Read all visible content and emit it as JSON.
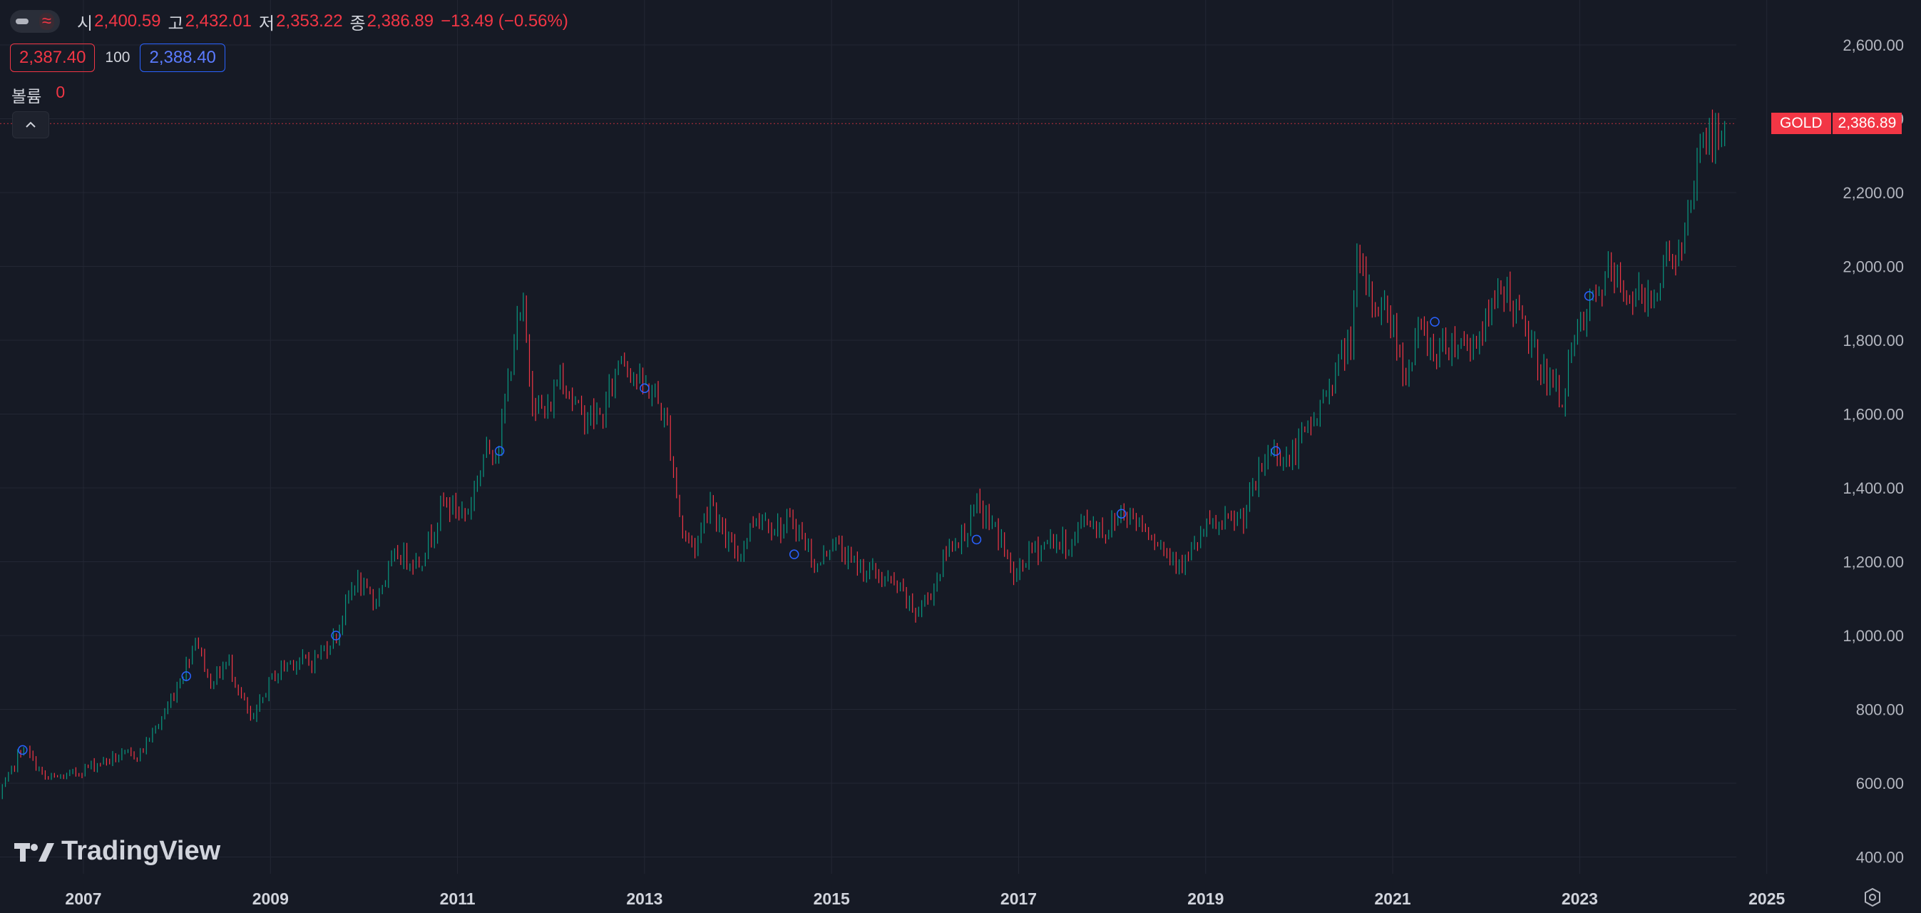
{
  "legend": {
    "open_label": "시",
    "open": "2,400.59",
    "high_label": "고",
    "high": "2,432.01",
    "low_label": "저",
    "low": "2,353.22",
    "close_label": "종",
    "close": "2,386.89",
    "change": "−13.49 (−0.56%)"
  },
  "trade": {
    "sell_price": "2,387.40",
    "quantity": "100",
    "buy_price": "2,388.40"
  },
  "volume": {
    "label": "볼륨",
    "value": "0"
  },
  "price_tag": {
    "symbol": "GOLD",
    "price": "2,386.89"
  },
  "brand": {
    "name": "TradingView"
  },
  "icons": {
    "toggle": "visibility-toggle-icon",
    "wave": "wave-icon",
    "collapse": "chevron-up-icon",
    "settings": "gear-icon"
  },
  "colors": {
    "up": "#089981",
    "down": "#f23645",
    "background": "#161a25",
    "buy": "#2962ff"
  },
  "chart_data": {
    "type": "candlestick",
    "symbol": "GOLD",
    "x_ticks": [
      "2007",
      "2009",
      "2011",
      "2013",
      "2015",
      "2017",
      "2019",
      "2021",
      "2023",
      "2025"
    ],
    "y_ticks": [
      "400.00",
      "600.00",
      "800.00",
      "1,000.00",
      "1,200.00",
      "1,400.00",
      "1,600.00",
      "1,800.00",
      "2,000.00",
      "2,200.00",
      "2,400.00",
      "2,600.00"
    ],
    "ylim": [
      400,
      2600
    ],
    "xlim": [
      2006.1,
      2026.3
    ],
    "last_price": 2386.89,
    "grid": true,
    "close_series": [
      [
        2006.1,
        560
      ],
      [
        2006.35,
        700
      ],
      [
        2006.6,
        610
      ],
      [
        2006.85,
        620
      ],
      [
        2007.1,
        650
      ],
      [
        2007.35,
        670
      ],
      [
        2007.6,
        680
      ],
      [
        2007.85,
        780
      ],
      [
        2008.1,
        920
      ],
      [
        2008.2,
        1000
      ],
      [
        2008.35,
        870
      ],
      [
        2008.55,
        930
      ],
      [
        2008.8,
        760
      ],
      [
        2009.0,
        880
      ],
      [
        2009.2,
        930
      ],
      [
        2009.45,
        930
      ],
      [
        2009.7,
        1000
      ],
      [
        2009.9,
        1150
      ],
      [
        2010.1,
        1090
      ],
      [
        2010.35,
        1220
      ],
      [
        2010.6,
        1200
      ],
      [
        2010.85,
        1360
      ],
      [
        2011.1,
        1330
      ],
      [
        2011.3,
        1500
      ],
      [
        2011.45,
        1520
      ],
      [
        2011.6,
        1800
      ],
      [
        2011.7,
        1880
      ],
      [
        2011.8,
        1650
      ],
      [
        2011.95,
        1590
      ],
      [
        2012.1,
        1720
      ],
      [
        2012.3,
        1600
      ],
      [
        2012.55,
        1590
      ],
      [
        2012.75,
        1770
      ],
      [
        2012.95,
        1680
      ],
      [
        2013.1,
        1660
      ],
      [
        2013.25,
        1560
      ],
      [
        2013.4,
        1280
      ],
      [
        2013.55,
        1240
      ],
      [
        2013.7,
        1380
      ],
      [
        2013.85,
        1260
      ],
      [
        2014.0,
        1220
      ],
      [
        2014.2,
        1330
      ],
      [
        2014.45,
        1290
      ],
      [
        2014.6,
        1310
      ],
      [
        2014.85,
        1180
      ],
      [
        2015.0,
        1260
      ],
      [
        2015.2,
        1200
      ],
      [
        2015.45,
        1170
      ],
      [
        2015.7,
        1130
      ],
      [
        2015.9,
        1060
      ],
      [
        2016.05,
        1110
      ],
      [
        2016.25,
        1240
      ],
      [
        2016.45,
        1290
      ],
      [
        2016.55,
        1350
      ],
      [
        2016.8,
        1270
      ],
      [
        2016.95,
        1150
      ],
      [
        2017.1,
        1220
      ],
      [
        2017.35,
        1260
      ],
      [
        2017.55,
        1240
      ],
      [
        2017.7,
        1320
      ],
      [
        2017.95,
        1280
      ],
      [
        2018.1,
        1340
      ],
      [
        2018.35,
        1300
      ],
      [
        2018.6,
        1220
      ],
      [
        2018.8,
        1200
      ],
      [
        2019.0,
        1290
      ],
      [
        2019.2,
        1300
      ],
      [
        2019.4,
        1320
      ],
      [
        2019.55,
        1420
      ],
      [
        2019.7,
        1510
      ],
      [
        2019.9,
        1470
      ],
      [
        2020.0,
        1520
      ],
      [
        2020.2,
        1600
      ],
      [
        2020.35,
        1700
      ],
      [
        2020.55,
        1800
      ],
      [
        2020.62,
        2000
      ],
      [
        2020.8,
        1900
      ],
      [
        2020.95,
        1880
      ],
      [
        2021.15,
        1700
      ],
      [
        2021.3,
        1840
      ],
      [
        2021.45,
        1760
      ],
      [
        2021.6,
        1800
      ],
      [
        2021.85,
        1790
      ],
      [
        2022.0,
        1850
      ],
      [
        2022.2,
        1950
      ],
      [
        2022.4,
        1830
      ],
      [
        2022.6,
        1720
      ],
      [
        2022.8,
        1640
      ],
      [
        2022.95,
        1800
      ],
      [
        2023.1,
        1880
      ],
      [
        2023.3,
        1980
      ],
      [
        2023.5,
        1930
      ],
      [
        2023.7,
        1910
      ],
      [
        2023.85,
        1960
      ],
      [
        2023.95,
        2040
      ],
      [
        2024.1,
        2030
      ],
      [
        2024.2,
        2180
      ],
      [
        2024.3,
        2370
      ],
      [
        2024.45,
        2330
      ],
      [
        2024.55,
        2386.89
      ]
    ],
    "markers": [
      [
        2006.35,
        690
      ],
      [
        2008.1,
        890
      ],
      [
        2009.7,
        1000
      ],
      [
        2011.45,
        1500
      ],
      [
        2013.0,
        1670
      ],
      [
        2014.6,
        1220
      ],
      [
        2016.55,
        1260
      ],
      [
        2018.1,
        1330
      ],
      [
        2019.75,
        1500
      ],
      [
        2021.45,
        1850
      ],
      [
        2023.1,
        1920
      ]
    ]
  }
}
